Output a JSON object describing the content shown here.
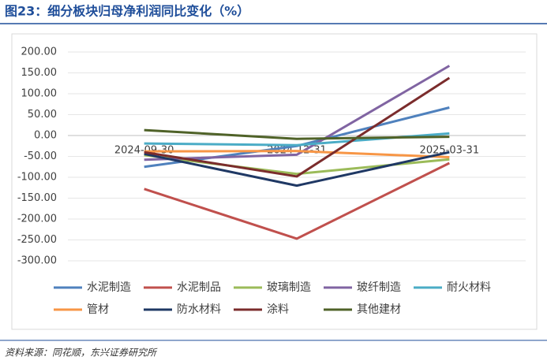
{
  "chart_data": {
    "type": "line",
    "title": "图23：细分板块归母净利润同比变化（%）",
    "source": "资料来源：同花顺，东兴证券研究所",
    "categories": [
      "2024-09-30",
      "2024-12-31",
      "2025-03-31"
    ],
    "ylim": [
      -300,
      200
    ],
    "yticks": [
      {
        "value": 200,
        "label": "200.00"
      },
      {
        "value": 150,
        "label": "150.00"
      },
      {
        "value": 100,
        "label": "100.00"
      },
      {
        "value": 50,
        "label": "50.00"
      },
      {
        "value": 0,
        "label": "0.00"
      },
      {
        "value": -50,
        "label": "-50.00"
      },
      {
        "value": -100,
        "label": "-100.00"
      },
      {
        "value": -150,
        "label": "-150.00"
      },
      {
        "value": -200,
        "label": "-200.00"
      },
      {
        "value": -250,
        "label": "-250.00"
      },
      {
        "value": -300,
        "label": "-300.00"
      }
    ],
    "grid": true,
    "legend": "bottom",
    "series": [
      {
        "name": "水泥制造",
        "color": "#4f81bd",
        "values": [
          -75,
          -25,
          67
        ]
      },
      {
        "name": "水泥制品",
        "color": "#c0504d",
        "values": [
          -128,
          -247,
          -66
        ]
      },
      {
        "name": "玻璃制造",
        "color": "#9bbb59",
        "values": [
          -47,
          -92,
          -57
        ]
      },
      {
        "name": "玻纤制造",
        "color": "#8064a2",
        "values": [
          -58,
          -46,
          167
        ]
      },
      {
        "name": "耐火材料",
        "color": "#4bacc6",
        "values": [
          -19,
          -23,
          5
        ]
      },
      {
        "name": "管材",
        "color": "#f79646",
        "values": [
          -38,
          -37,
          -52
        ]
      },
      {
        "name": "防水材料",
        "color": "#1f3864",
        "values": [
          -44,
          -120,
          -40
        ]
      },
      {
        "name": "涂料",
        "color": "#7b2c2c",
        "values": [
          -40,
          -98,
          138
        ]
      },
      {
        "name": "其他建材",
        "color": "#4f6228",
        "values": [
          13,
          -8,
          -3
        ]
      }
    ]
  }
}
